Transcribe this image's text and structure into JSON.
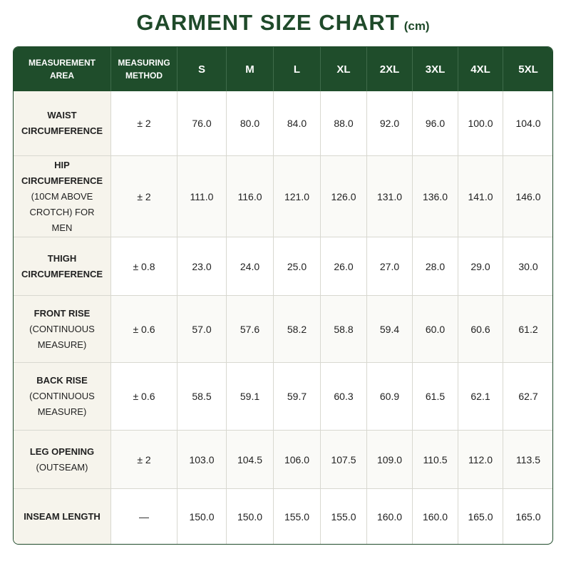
{
  "header": {
    "title": "GARMENT SIZE CHART",
    "unit": "(cm)"
  },
  "table": {
    "columns": [
      "MEASUREMENT AREA",
      "MEASURING METHOD",
      "S",
      "M",
      "L",
      "XL",
      "2XL",
      "3XL",
      "4XL",
      "5XL"
    ],
    "rows": [
      {
        "area": "WAIST CIRCUMFERENCE",
        "method": "± 2",
        "values": [
          "76.0",
          "80.0",
          "84.0",
          "88.0",
          "92.0",
          "96.0",
          "100.0",
          "104.0"
        ]
      },
      {
        "area": "HIP CIRCUMFERENCE",
        "note": "(10CM ABOVE CROTCH) FOR MEN",
        "method": "± 2",
        "values": [
          "111.0",
          "116.0",
          "121.0",
          "126.0",
          "131.0",
          "136.0",
          "141.0",
          "146.0"
        ]
      },
      {
        "area": "THIGH CIRCUMFERENCE",
        "method": "± 0.8",
        "values": [
          "23.0",
          "24.0",
          "25.0",
          "26.0",
          "27.0",
          "28.0",
          "29.0",
          "30.0"
        ]
      },
      {
        "area": "FRONT RISE",
        "note": "(CONTINUOUS MEASURE)",
        "method": "± 0.6",
        "values": [
          "57.0",
          "57.6",
          "58.2",
          "58.8",
          "59.4",
          "60.0",
          "60.6",
          "61.2"
        ]
      },
      {
        "area": "BACK RISE",
        "note": "(CONTINUOUS MEASURE)",
        "method": "± 0.6",
        "values": [
          "58.5",
          "59.1",
          "59.7",
          "60.3",
          "60.9",
          "61.5",
          "62.1",
          "62.7"
        ]
      },
      {
        "area": "LEG OPENING",
        "note": "(OUTSEAM)",
        "method": "± 2",
        "values": [
          "103.0",
          "104.5",
          "106.0",
          "107.5",
          "109.0",
          "110.5",
          "112.0",
          "113.5"
        ]
      },
      {
        "area": "INSEAM LENGTH",
        "method": "—",
        "values": [
          "150.0",
          "150.0",
          "155.0",
          "155.0",
          "160.0",
          "160.0",
          "165.0",
          "165.0"
        ]
      }
    ]
  }
}
